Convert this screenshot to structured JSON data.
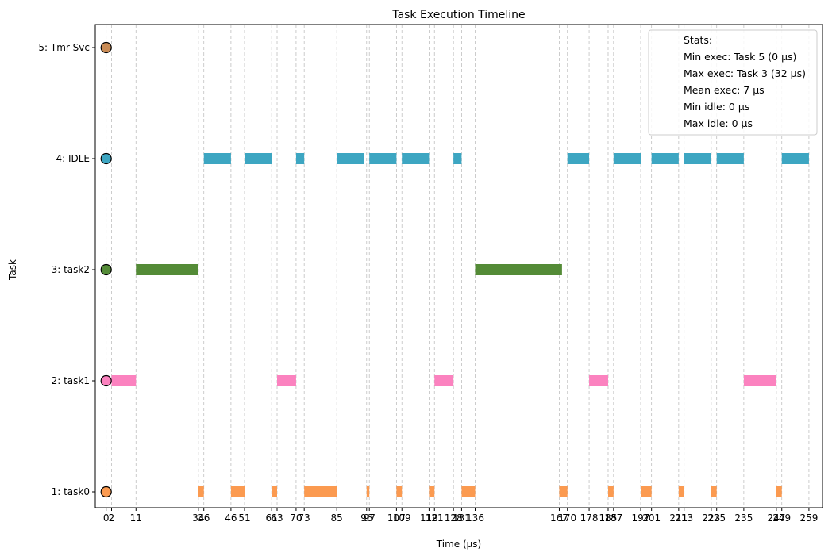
{
  "chart_data": {
    "type": "timeline",
    "title": "Task Execution Timeline",
    "xlabel": "Time (µs)",
    "ylabel": "Task",
    "xlim": [
      -4,
      264
    ],
    "x_ticks": [
      0,
      2,
      11,
      34,
      36,
      46,
      51,
      61,
      63,
      70,
      73,
      85,
      96,
      97,
      107,
      109,
      119,
      121,
      128,
      131,
      136,
      167,
      170,
      178,
      185,
      187,
      197,
      201,
      211,
      213,
      223,
      225,
      235,
      247,
      249,
      259
    ],
    "tasks": [
      {
        "label": "1: task0",
        "color": "#fb9a50",
        "start_marker": 0,
        "segments": [
          [
            34,
            36
          ],
          [
            46,
            51
          ],
          [
            61,
            63
          ],
          [
            73,
            85
          ],
          [
            96,
            97
          ],
          [
            107,
            109
          ],
          [
            119,
            121
          ],
          [
            131,
            136
          ],
          [
            167,
            170
          ],
          [
            185,
            187
          ],
          [
            197,
            201
          ],
          [
            211,
            213
          ],
          [
            223,
            225
          ],
          [
            247,
            249
          ]
        ]
      },
      {
        "label": "2: task1",
        "color": "#fb82bf",
        "start_marker": 0,
        "segments": [
          [
            2,
            11
          ],
          [
            63,
            70
          ],
          [
            121,
            128
          ],
          [
            178,
            185
          ],
          [
            235,
            247
          ]
        ]
      },
      {
        "label": "3: task2",
        "color": "#548b37",
        "start_marker": 0,
        "segments": [
          [
            11,
            34
          ],
          [
            136,
            168
          ]
        ]
      },
      {
        "label": "4: IDLE",
        "color": "#3da6c2",
        "start_marker": 0,
        "segments": [
          [
            36,
            46
          ],
          [
            51,
            61
          ],
          [
            70,
            73
          ],
          [
            85,
            95
          ],
          [
            97,
            107
          ],
          [
            109,
            119
          ],
          [
            128,
            131
          ],
          [
            170,
            178
          ],
          [
            187,
            197
          ],
          [
            201,
            211
          ],
          [
            213,
            223
          ],
          [
            225,
            235
          ],
          [
            249,
            259
          ]
        ]
      },
      {
        "label": "5: Tmr Svc",
        "color": "#c98b55",
        "start_marker": 0,
        "segments": []
      }
    ],
    "legend": {
      "position": "upper right",
      "lines": [
        "Stats:",
        "Min exec: Task 5 (0 µs)",
        "Max exec: Task 3 (32 µs)",
        "Mean exec: 7 µs",
        "Min idle: 0 µs",
        "Max idle: 0 µs"
      ]
    },
    "grid": "vertical dashed at tick positions"
  }
}
